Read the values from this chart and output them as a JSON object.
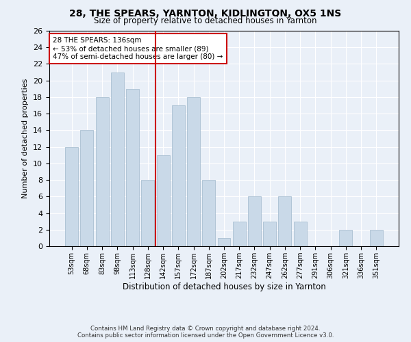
{
  "title1": "28, THE SPEARS, YARNTON, KIDLINGTON, OX5 1NS",
  "title2": "Size of property relative to detached houses in Yarnton",
  "xlabel": "Distribution of detached houses by size in Yarnton",
  "ylabel": "Number of detached properties",
  "categories": [
    "53sqm",
    "68sqm",
    "83sqm",
    "98sqm",
    "113sqm",
    "128sqm",
    "142sqm",
    "157sqm",
    "172sqm",
    "187sqm",
    "202sqm",
    "217sqm",
    "232sqm",
    "247sqm",
    "262sqm",
    "277sqm",
    "291sqm",
    "306sqm",
    "321sqm",
    "336sqm",
    "351sqm"
  ],
  "values": [
    12,
    14,
    18,
    21,
    19,
    8,
    11,
    17,
    18,
    8,
    1,
    3,
    6,
    3,
    6,
    3,
    0,
    0,
    2,
    0,
    2
  ],
  "bar_color": "#c9d9e8",
  "bar_edge_color": "#a0b8cc",
  "vline_x_index": 6,
  "vline_color": "#cc0000",
  "annotation_text": "28 THE SPEARS: 136sqm\n← 53% of detached houses are smaller (89)\n47% of semi-detached houses are larger (80) →",
  "annotation_box_color": "#ffffff",
  "annotation_box_edge": "#cc0000",
  "ylim": [
    0,
    26
  ],
  "yticks": [
    0,
    2,
    4,
    6,
    8,
    10,
    12,
    14,
    16,
    18,
    20,
    22,
    24,
    26
  ],
  "footnote1": "Contains HM Land Registry data © Crown copyright and database right 2024.",
  "footnote2": "Contains public sector information licensed under the Open Government Licence v3.0.",
  "bg_color": "#eaf0f8",
  "plot_bg_color": "#eaf0f8"
}
